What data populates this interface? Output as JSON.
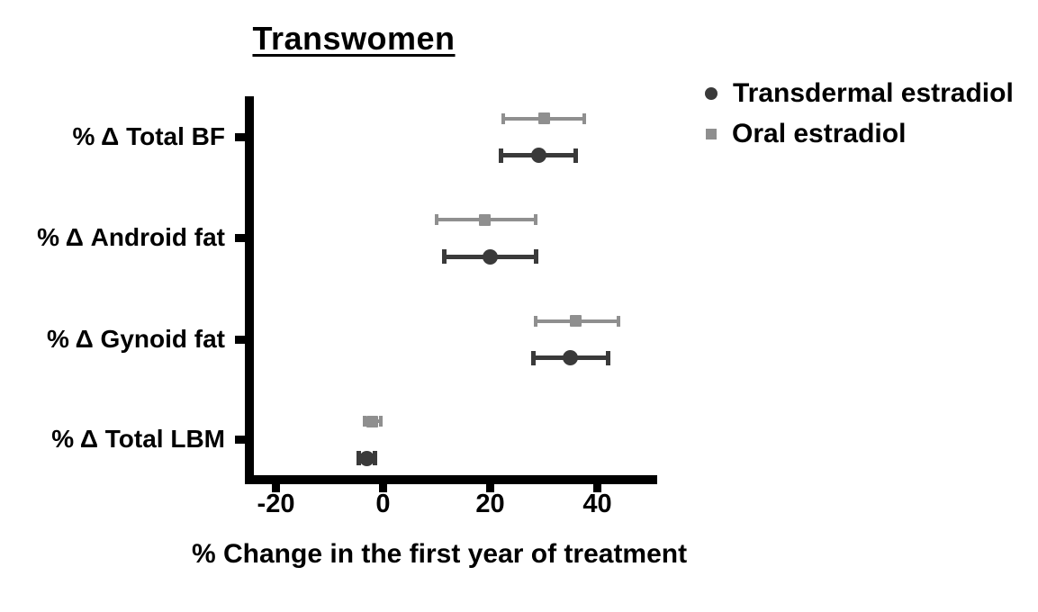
{
  "chart_data": {
    "type": "scatter",
    "subtype": "horizontal dot plot with error bars (forest plot)",
    "title": "Transwomen",
    "xlabel": "% Change in the first year of treatment",
    "ylabel": "",
    "xlim": [
      -26,
      51
    ],
    "xticks": [
      -20,
      0,
      20,
      40
    ],
    "grid": false,
    "legend_position": "top-right",
    "categories": [
      "% Δ Total BF",
      "% Δ Android fat",
      "% Δ Gynoid fat",
      "% Δ Total LBM"
    ],
    "series": [
      {
        "name": "Transdermal estradiol",
        "marker": "circle",
        "color": "#3a3a3a",
        "values": [
          29,
          20,
          35,
          -3
        ],
        "ci_low": [
          22,
          11.5,
          28,
          -4.5
        ],
        "ci_high": [
          36,
          28.5,
          42,
          -1.5
        ]
      },
      {
        "name": "Oral estradiol",
        "marker": "square",
        "color": "#8f8f8f",
        "values": [
          30,
          19,
          36,
          -2
        ],
        "ci_low": [
          22.5,
          10,
          28.5,
          -3.5
        ],
        "ci_high": [
          37.5,
          28.5,
          44,
          -0.5
        ]
      }
    ]
  }
}
